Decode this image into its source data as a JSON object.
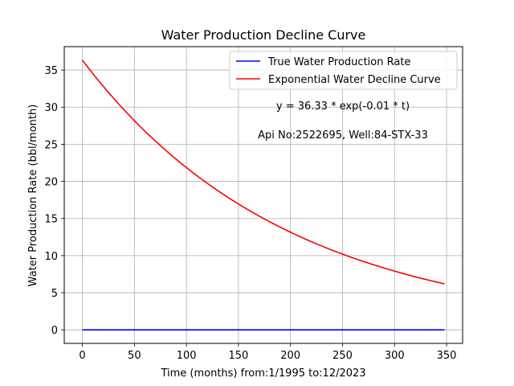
{
  "chart_data": {
    "type": "line",
    "title": "Water Production Decline Curve",
    "xlabel": "Time (months) from:1/1995 to:12/2023",
    "ylabel": "Water Production Rate (bbl/month)",
    "xlim": [
      -17.4,
      365.4
    ],
    "ylim": [
      -1.82,
      38.15
    ],
    "xticks": [
      0,
      50,
      100,
      150,
      200,
      250,
      300,
      350
    ],
    "yticks": [
      0,
      5,
      10,
      15,
      20,
      25,
      30,
      35
    ],
    "grid": true,
    "legend_position": "top-right",
    "series": [
      {
        "name": "True Water Production Rate",
        "color": "#0000ff",
        "x": [
          0,
          348
        ],
        "y": [
          0,
          0
        ]
      },
      {
        "name": "Exponential Water Decline Curve",
        "color": "#ff0000",
        "formula": {
          "a": 36.33,
          "b": 0.00508
        },
        "x_range": [
          0,
          348
        ]
      }
    ],
    "annotations": [
      "y = 36.33 * exp(-0.01 * t)",
      "Api No:2522695, Well:84-STX-33"
    ]
  }
}
